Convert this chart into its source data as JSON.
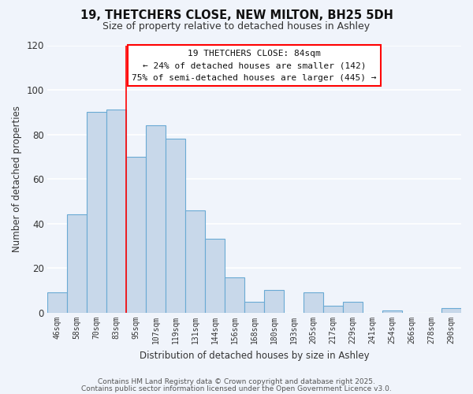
{
  "title": "19, THETCHERS CLOSE, NEW MILTON, BH25 5DH",
  "subtitle": "Size of property relative to detached houses in Ashley",
  "xlabel": "Distribution of detached houses by size in Ashley",
  "ylabel": "Number of detached properties",
  "bar_color": "#c8d8ea",
  "bar_edge_color": "#6aaad4",
  "background_color": "#f0f4fb",
  "categories": [
    "46sqm",
    "58sqm",
    "70sqm",
    "83sqm",
    "95sqm",
    "107sqm",
    "119sqm",
    "131sqm",
    "144sqm",
    "156sqm",
    "168sqm",
    "180sqm",
    "193sqm",
    "205sqm",
    "217sqm",
    "229sqm",
    "241sqm",
    "254sqm",
    "266sqm",
    "278sqm",
    "290sqm"
  ],
  "values": [
    9,
    44,
    90,
    91,
    70,
    84,
    78,
    46,
    33,
    16,
    5,
    10,
    0,
    9,
    3,
    5,
    0,
    1,
    0,
    0,
    2
  ],
  "ylim": [
    0,
    120
  ],
  "yticks": [
    0,
    20,
    40,
    60,
    80,
    100,
    120
  ],
  "annotation_line1": "19 THETCHERS CLOSE: 84sqm",
  "annotation_line2": "← 24% of detached houses are smaller (142)",
  "annotation_line3": "75% of semi-detached houses are larger (445) →",
  "property_bar_index": 3,
  "footer_line1": "Contains HM Land Registry data © Crown copyright and database right 2025.",
  "footer_line2": "Contains public sector information licensed under the Open Government Licence v3.0.",
  "grid_color": "#ffffff",
  "figsize": [
    6.0,
    5.0
  ],
  "dpi": 100
}
